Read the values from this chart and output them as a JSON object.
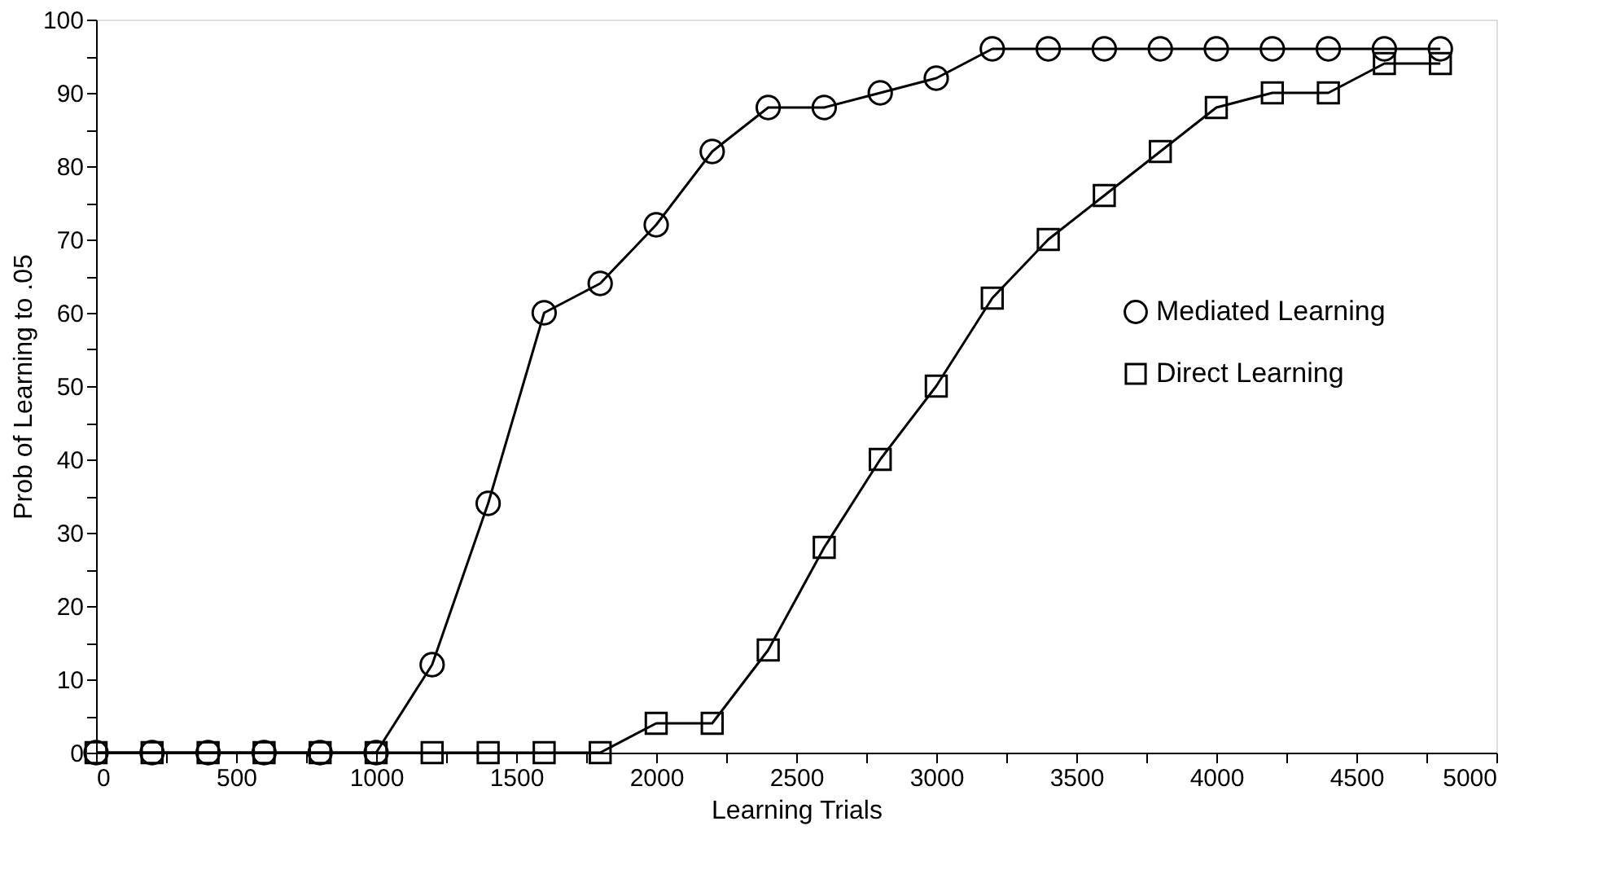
{
  "chart_data": {
    "type": "line",
    "xlabel": "Learning Trials",
    "ylabel": "Prob of Learning to .05",
    "x": [
      0,
      200,
      400,
      600,
      800,
      1000,
      1200,
      1400,
      1600,
      1800,
      2000,
      2200,
      2400,
      2600,
      2800,
      3000,
      3200,
      3400,
      3600,
      3800,
      4000,
      4200,
      4400,
      4600,
      4800
    ],
    "series": [
      {
        "name": "Mediated Learning",
        "color": "#000000",
        "marker": "circle",
        "values": [
          0,
          0,
          0,
          0,
          0,
          0,
          12,
          34,
          60,
          64,
          72,
          82,
          88,
          88,
          90,
          92,
          96,
          96,
          96,
          96,
          96,
          96,
          96,
          96,
          96
        ]
      },
      {
        "name": "Direct Learning",
        "color": "#000000",
        "marker": "square",
        "values": [
          0,
          0,
          0,
          0,
          0,
          0,
          0,
          0,
          0,
          0,
          4,
          4,
          14,
          28,
          40,
          50,
          62,
          70,
          76,
          82,
          88,
          90,
          90,
          94,
          94
        ]
      }
    ],
    "xlim": [
      0,
      5000
    ],
    "xticks": [
      0,
      {
        "value": 250,
        "label": null
      },
      500,
      {
        "value": 750,
        "label": null
      },
      1000,
      {
        "value": 1250,
        "label": null
      },
      1500,
      {
        "value": 1750,
        "label": null
      },
      2000,
      {
        "value": 2250,
        "label": null
      },
      2500,
      {
        "value": 2750,
        "label": null
      },
      3000,
      {
        "value": 3250,
        "label": null
      },
      3500,
      {
        "value": 3750,
        "label": null
      },
      4000,
      {
        "value": 4250,
        "label": null
      },
      4500,
      {
        "value": 4750,
        "label": null
      },
      5000
    ],
    "ylim": [
      0,
      100
    ],
    "yticks": [
      0,
      {
        "value": 5,
        "label": null
      },
      10,
      {
        "value": 15,
        "label": null
      },
      20,
      {
        "value": 25,
        "label": null
      },
      30,
      {
        "value": 35,
        "label": null
      },
      40,
      {
        "value": 45,
        "label": null
      },
      50,
      {
        "value": 55,
        "label": null
      },
      60,
      {
        "value": 65,
        "label": null
      },
      70,
      {
        "value": 75,
        "label": null
      },
      80,
      {
        "value": 85,
        "label": null
      },
      90,
      {
        "value": 95,
        "label": null
      },
      100
    ],
    "grid": false,
    "legend": "right",
    "line_style": "solid"
  }
}
